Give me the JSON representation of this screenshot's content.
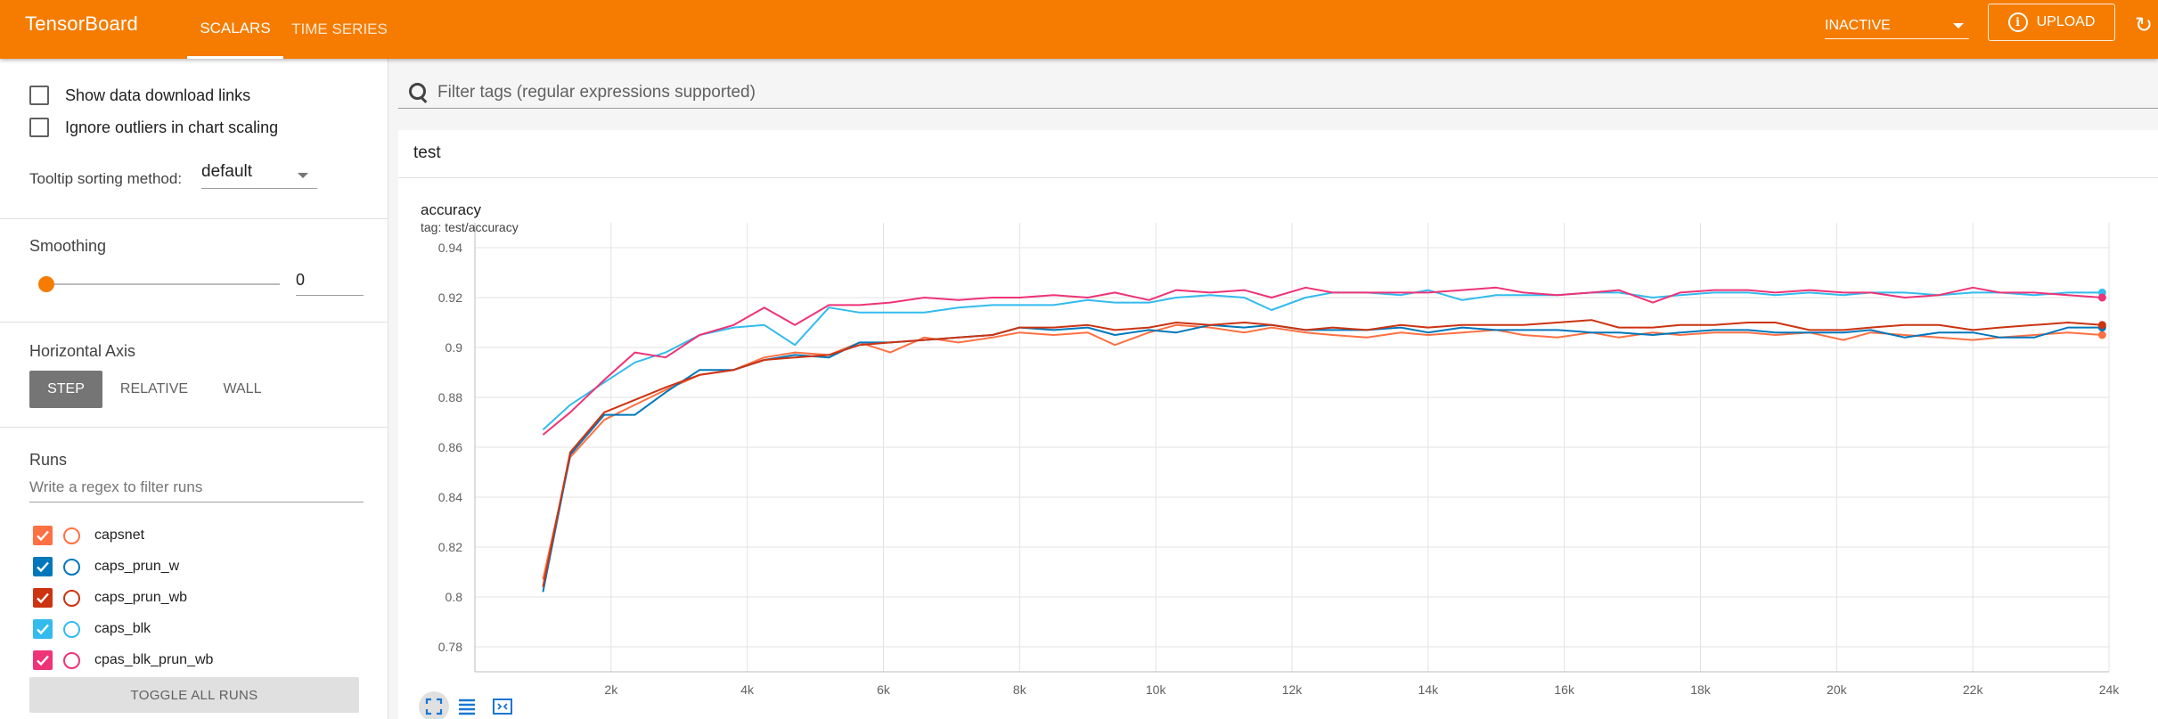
{
  "header": {
    "brand": "TensorBoard",
    "tabs": [
      {
        "label": "SCALARS"
      },
      {
        "label": "TIME SERIES"
      }
    ],
    "status_select": "INACTIVE",
    "upload_label": "UPLOAD",
    "info_glyph": "i",
    "refresh_glyph": "↻"
  },
  "sidebar": {
    "show_download_links": "Show data download links",
    "ignore_outliers": "Ignore outliers in chart scaling",
    "tooltip_sort_label": "Tooltip sorting method:",
    "tooltip_sort_value": "default",
    "smoothing_label": "Smoothing",
    "smoothing_value": "0",
    "smoothing_level": 0,
    "horizontal_axis_label": "Horizontal Axis",
    "axis_options": [
      "STEP",
      "RELATIVE",
      "WALL"
    ],
    "runs_label": "Runs",
    "runs_filter_placeholder": "Write a regex to filter runs",
    "runs": [
      {
        "name": "capsnet",
        "color": "#ff7043",
        "checked": true
      },
      {
        "name": "caps_prun_w",
        "color": "#0077bb",
        "checked": true
      },
      {
        "name": "caps_prun_wb",
        "color": "#cc3311",
        "checked": true
      },
      {
        "name": "caps_blk",
        "color": "#33bbee",
        "checked": true
      },
      {
        "name": "cpas_blk_prun_wb",
        "color": "#ee3377",
        "checked": true
      }
    ],
    "toggle_all_label": "TOGGLE ALL RUNS"
  },
  "main": {
    "filter_placeholder": "Filter tags (regular expressions supported)",
    "group_name": "test",
    "card_title": "accuracy",
    "card_tag": "tag: test/accuracy"
  },
  "chart_data": {
    "type": "line",
    "title": "accuracy",
    "xlabel": "",
    "ylabel": "",
    "xlim": [
      0,
      24000
    ],
    "ylim": [
      0.77,
      0.95
    ],
    "x_ticks": [
      "2k",
      "4k",
      "6k",
      "8k",
      "10k",
      "12k",
      "14k",
      "16k",
      "18k",
      "20k",
      "22k",
      "24k"
    ],
    "x_tick_values": [
      2000,
      4000,
      6000,
      8000,
      10000,
      12000,
      14000,
      16000,
      18000,
      20000,
      22000,
      24000
    ],
    "y_ticks": [
      "0.78",
      "0.8",
      "0.82",
      "0.84",
      "0.86",
      "0.88",
      "0.9",
      "0.92",
      "0.94"
    ],
    "y_tick_values": [
      0.78,
      0.8,
      0.82,
      0.84,
      0.86,
      0.88,
      0.9,
      0.92,
      0.94
    ],
    "grid": true,
    "x": [
      1000,
      1400,
      1900,
      2350,
      2800,
      3300,
      3800,
      4250,
      4700,
      5200,
      5650,
      6100,
      6600,
      7100,
      7600,
      8000,
      8500,
      9000,
      9400,
      9900,
      10300,
      10800,
      11300,
      11700,
      12200,
      12600,
      13100,
      13600,
      14000,
      14500,
      15000,
      15400,
      15900,
      16400,
      16800,
      17300,
      17700,
      18200,
      18700,
      19100,
      19600,
      20100,
      20500,
      21000,
      21500,
      22000,
      22400,
      22900,
      23400,
      23900
    ],
    "series": [
      {
        "name": "capsnet",
        "color": "#ff7043",
        "values": [
          0.807,
          0.856,
          0.871,
          0.877,
          0.883,
          0.889,
          0.891,
          0.896,
          0.898,
          0.897,
          0.902,
          0.898,
          0.904,
          0.902,
          0.904,
          0.906,
          0.905,
          0.906,
          0.901,
          0.906,
          0.909,
          0.908,
          0.906,
          0.908,
          0.906,
          0.905,
          0.904,
          0.906,
          0.905,
          0.906,
          0.907,
          0.905,
          0.904,
          0.906,
          0.904,
          0.906,
          0.905,
          0.906,
          0.906,
          0.905,
          0.906,
          0.903,
          0.906,
          0.905,
          0.904,
          0.903,
          0.904,
          0.905,
          0.906,
          0.905
        ]
      },
      {
        "name": "caps_prun_w",
        "color": "#0077bb",
        "values": [
          0.802,
          0.857,
          0.873,
          0.873,
          0.882,
          0.891,
          0.891,
          0.895,
          0.897,
          0.896,
          0.902,
          0.902,
          0.903,
          0.904,
          0.905,
          0.908,
          0.907,
          0.908,
          0.905,
          0.907,
          0.906,
          0.909,
          0.908,
          0.909,
          0.907,
          0.907,
          0.907,
          0.908,
          0.906,
          0.908,
          0.907,
          0.907,
          0.907,
          0.906,
          0.906,
          0.905,
          0.906,
          0.907,
          0.907,
          0.906,
          0.906,
          0.906,
          0.907,
          0.904,
          0.906,
          0.906,
          0.904,
          0.904,
          0.908,
          0.908
        ]
      },
      {
        "name": "caps_prun_wb",
        "color": "#cc3311",
        "values": [
          0.804,
          0.858,
          0.874,
          0.879,
          0.884,
          0.889,
          0.891,
          0.895,
          0.896,
          0.897,
          0.901,
          0.902,
          0.903,
          0.904,
          0.905,
          0.908,
          0.908,
          0.909,
          0.907,
          0.908,
          0.91,
          0.909,
          0.91,
          0.909,
          0.907,
          0.908,
          0.907,
          0.909,
          0.908,
          0.909,
          0.909,
          0.909,
          0.91,
          0.911,
          0.908,
          0.908,
          0.909,
          0.909,
          0.91,
          0.91,
          0.907,
          0.907,
          0.908,
          0.909,
          0.909,
          0.907,
          0.908,
          0.909,
          0.91,
          0.909
        ]
      },
      {
        "name": "caps_blk",
        "color": "#33bbee",
        "values": [
          0.867,
          0.877,
          0.886,
          0.894,
          0.898,
          0.905,
          0.908,
          0.909,
          0.901,
          0.916,
          0.914,
          0.914,
          0.914,
          0.916,
          0.917,
          0.917,
          0.917,
          0.919,
          0.918,
          0.918,
          0.92,
          0.921,
          0.92,
          0.915,
          0.92,
          0.922,
          0.922,
          0.921,
          0.923,
          0.919,
          0.921,
          0.921,
          0.921,
          0.922,
          0.922,
          0.92,
          0.921,
          0.922,
          0.922,
          0.921,
          0.922,
          0.921,
          0.922,
          0.922,
          0.921,
          0.922,
          0.922,
          0.921,
          0.922,
          0.922
        ]
      },
      {
        "name": "cpas_blk_prun_wb",
        "color": "#ee3377",
        "values": [
          0.865,
          0.874,
          0.887,
          0.898,
          0.896,
          0.905,
          0.909,
          0.916,
          0.909,
          0.917,
          0.917,
          0.918,
          0.92,
          0.919,
          0.92,
          0.92,
          0.921,
          0.92,
          0.922,
          0.919,
          0.923,
          0.922,
          0.923,
          0.92,
          0.924,
          0.922,
          0.922,
          0.922,
          0.922,
          0.923,
          0.924,
          0.922,
          0.921,
          0.922,
          0.923,
          0.918,
          0.922,
          0.923,
          0.923,
          0.922,
          0.923,
          0.922,
          0.922,
          0.92,
          0.921,
          0.924,
          0.922,
          0.922,
          0.921,
          0.92
        ]
      }
    ]
  }
}
